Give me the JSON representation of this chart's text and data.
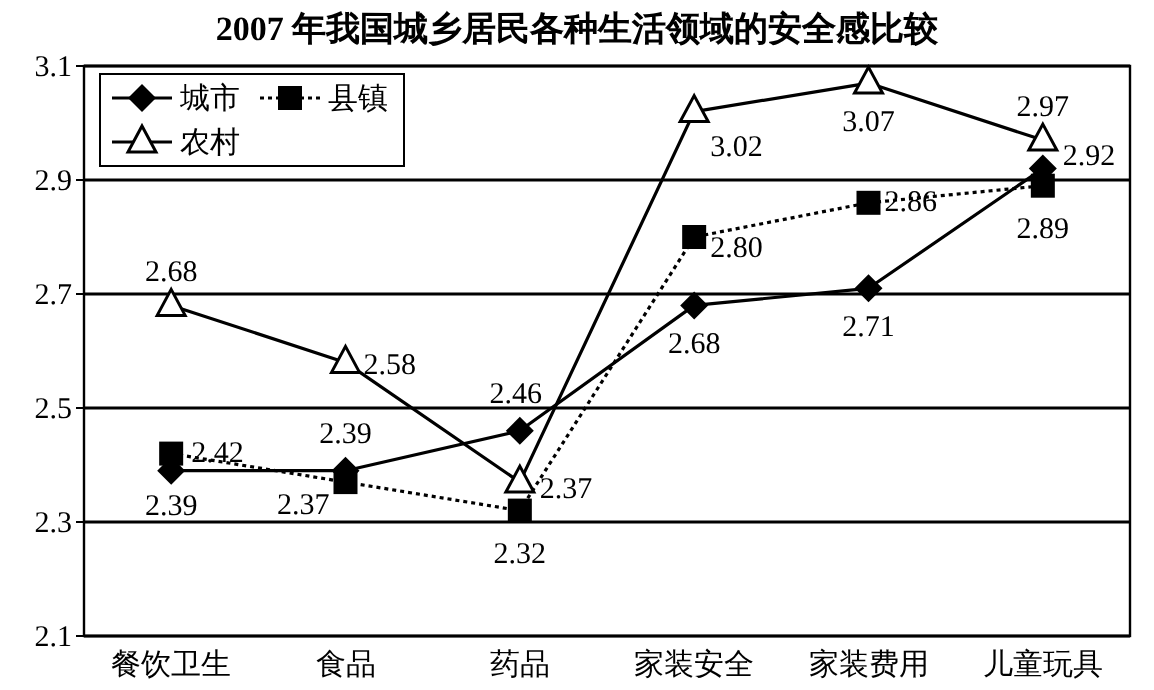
{
  "chart_data": {
    "type": "line",
    "title": "2007 年我国城乡居民各种生活领域的安全感比较",
    "categories": [
      "餐饮卫生",
      "食品",
      "药品",
      "家装安全",
      "家装费用",
      "儿童玩具"
    ],
    "series": [
      {
        "name": "城市",
        "color": "#000000",
        "marker": "diamond",
        "line_style": "solid",
        "values": [
          2.39,
          2.39,
          2.46,
          2.68,
          2.71,
          2.92
        ],
        "value_labels": [
          "2.39",
          "2.39",
          "2.46",
          "2.68",
          "2.71",
          "2.92"
        ]
      },
      {
        "name": "县镇",
        "color": "#000000",
        "marker": "square",
        "line_style": "dotted",
        "values": [
          2.42,
          2.37,
          2.32,
          2.8,
          2.86,
          2.89
        ],
        "value_labels": [
          "2.42",
          "2.37",
          "2.32",
          "2.80",
          "2.86",
          "2.89"
        ]
      },
      {
        "name": "农村",
        "color": "#000000",
        "marker": "triangle",
        "line_style": "solid",
        "values": [
          2.68,
          2.58,
          2.37,
          3.02,
          3.07,
          2.97
        ],
        "value_labels": [
          "2.68",
          "2.58",
          "2.37",
          "3.02",
          "3.07",
          "2.97"
        ]
      }
    ],
    "ylim": [
      2.1,
      3.1
    ],
    "yticks": [
      2.1,
      2.3,
      2.5,
      2.7,
      2.9,
      3.1
    ],
    "grid": "y",
    "legend": "top left"
  }
}
